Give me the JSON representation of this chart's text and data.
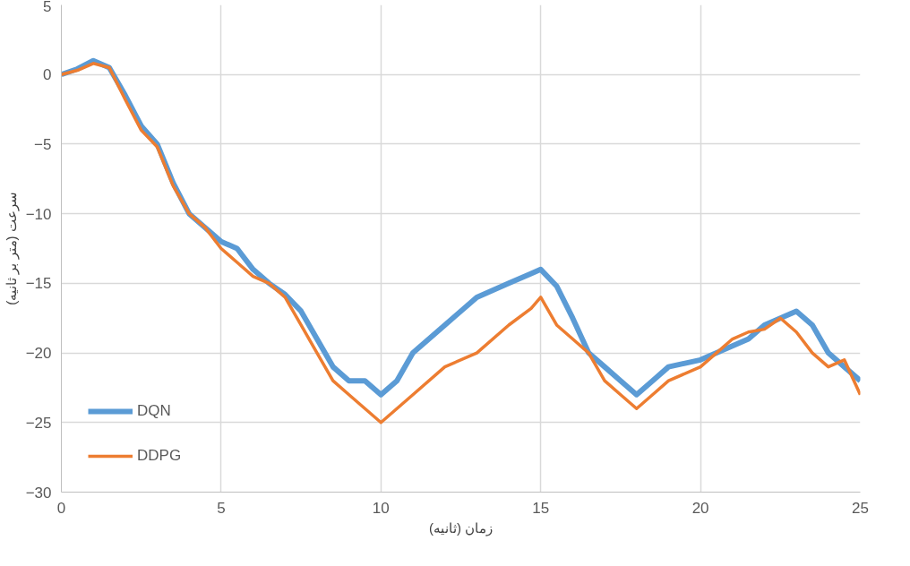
{
  "chart_data": {
    "type": "line",
    "xlabel": "زمان (ثانیه)",
    "ylabel": "سرعت (متر بر ثانیه)",
    "xlim": [
      0,
      25
    ],
    "xticks": [
      0,
      5,
      10,
      15,
      20,
      25
    ],
    "ylim": [
      -30,
      5
    ],
    "yticks": [
      -30,
      -25,
      -20,
      -15,
      -10,
      -5,
      0,
      5
    ],
    "grid": true,
    "legend": "bottom left",
    "line_style": "solid",
    "x": [
      0,
      0.5,
      1,
      1.5,
      2,
      2.5,
      3,
      3.5,
      4,
      4.5,
      5,
      5.5,
      6,
      6.5,
      7,
      7.5,
      8,
      8.5,
      9,
      9.5,
      10,
      10.5,
      11,
      12,
      13,
      14,
      14.7,
      15,
      15.5,
      16,
      16.5,
      17,
      17.5,
      18,
      18.5,
      19,
      20,
      20.5,
      21,
      21.5,
      22,
      22.5,
      23,
      23.5,
      24,
      24.5,
      25
    ],
    "series": [
      {
        "name": "DQN",
        "color": "#5b9bd5",
        "values": [
          0,
          0.4,
          1,
          0.5,
          -1.5,
          -3.7,
          -5,
          -7.8,
          -10,
          -11,
          -12,
          -12.5,
          -14,
          -15,
          -15.8,
          -17,
          -19,
          -21,
          -22,
          -22,
          -23,
          -22,
          -20,
          -18,
          -16,
          -15,
          -14.3,
          -14,
          -15.2,
          -17.5,
          -20,
          -21,
          -22,
          -23,
          -22,
          -21,
          -20.5,
          -20,
          -19.5,
          -19,
          -18,
          -17.5,
          -17,
          -18,
          -20,
          -21,
          -22
        ]
      },
      {
        "name": "DDPG",
        "color": "#ed7d31",
        "values": [
          0,
          0.3,
          0.8,
          0.5,
          -1.8,
          -4,
          -5.2,
          -8,
          -10,
          -11,
          -12.5,
          -13.5,
          -14.5,
          -15,
          -16,
          -18,
          -20,
          -22,
          -23,
          -24,
          -25,
          -24,
          -23,
          -21,
          -20,
          -18,
          -16.8,
          -16,
          -18,
          -19,
          -20,
          -22,
          -23,
          -24,
          -23,
          -22,
          -21,
          -20,
          -19,
          -18.5,
          -18.3,
          -17.5,
          -18.5,
          -20,
          -21,
          -20.5,
          -23
        ]
      }
    ]
  }
}
